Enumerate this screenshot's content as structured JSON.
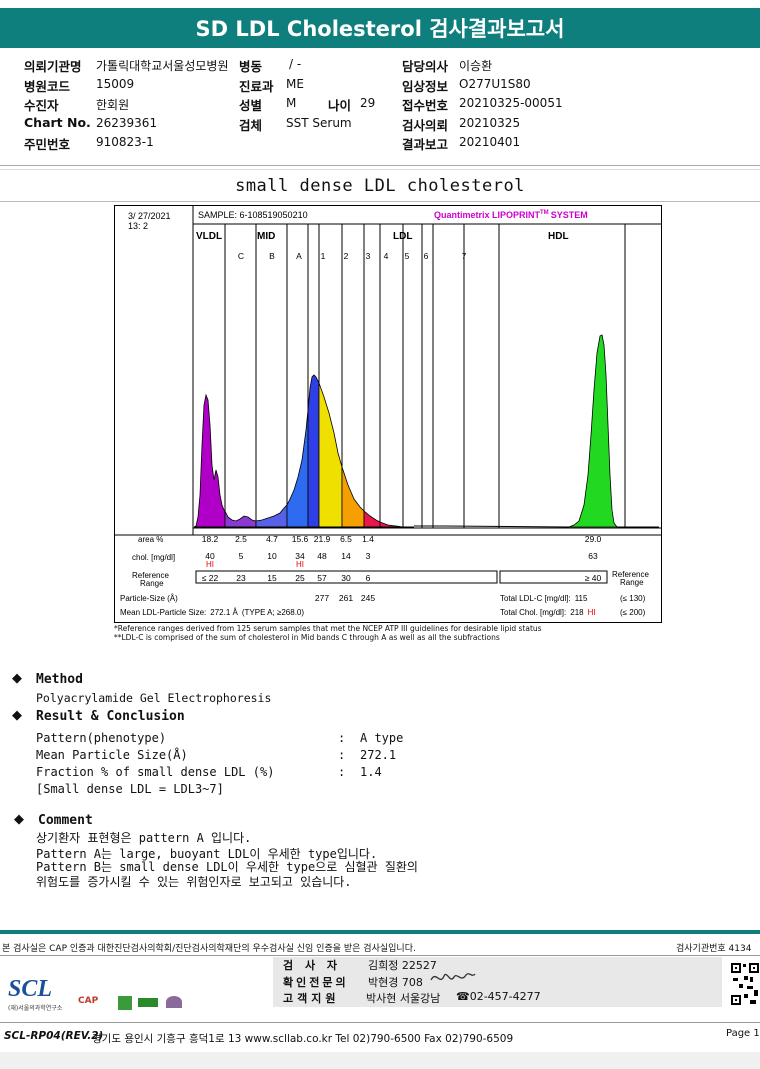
{
  "title": "SD LDL Cholesterol 검사결과보고서",
  "info": {
    "hospital_label": "의뢰기관명",
    "hospital": "가톨릭대학교서울성모병원",
    "ward_label": "병동",
    "ward": "/ -",
    "doctor_label": "담당의사",
    "doctor": "이승환",
    "code_label": "병원코드",
    "code": "15009",
    "dept_label": "진료과",
    "dept": "ME",
    "clinical_label": "임상정보",
    "clinical": "O277U1S80",
    "patient_label": "수진자",
    "patient": "한회원",
    "sex_label": "성별",
    "sex": "M",
    "age_label": "나이",
    "age": "29",
    "receipt_label": "접수번호",
    "receipt": "20210325-00051",
    "chart_label": "Chart No.",
    "chart": "26239361",
    "specimen_label": "검체",
    "specimen": "SST Serum",
    "request_label": "검사의뢰",
    "request": "20210325",
    "rrn_label": "주민번호",
    "rrn": "910823-1",
    "report_label": "결과보고",
    "report": "20210401"
  },
  "section_title": "small dense LDL cholesterol",
  "chart_data": {
    "type": "area",
    "date": "3/ 27/2021",
    "date2": "13: 2",
    "sample": "SAMPLE: 6-108519050210",
    "system": "Quantimetrix LIPOPRINT",
    "system_tm": "TM",
    "system_suffix": "SYSTEM",
    "groups": [
      "VLDL",
      "MID",
      "LDL",
      "HDL"
    ],
    "bands": [
      "C",
      "B",
      "A",
      "1",
      "2",
      "3",
      "4",
      "5",
      "6",
      "7"
    ],
    "band_colors": {
      "VLDL": "#b000c8",
      "C": "#8a3ad0",
      "B": "#5860e8",
      "A": "#2e6bf0",
      "1": "#2f3fe8",
      "2": "#f0e000",
      "3": "#f5a000",
      "4": "#e8184a",
      "5": "#e8184a",
      "HDL": "#22d820"
    },
    "area_label": "area %",
    "area": [
      "18.2",
      "2.5",
      "4.7",
      "15.6",
      "21.9",
      "6.5",
      "1.4",
      "29.0"
    ],
    "chol_label": "chol. [mg/dl]",
    "chol": [
      "40",
      "5",
      "10",
      "34",
      "48",
      "14",
      "3",
      "63"
    ],
    "hi": [
      "HI",
      "HI"
    ],
    "ref_label": "Reference",
    "ref_label2": "Range",
    "ref": [
      "≤ 22",
      "23",
      "15",
      "25",
      "57",
      "30",
      "6",
      "≥ 40"
    ],
    "psize_label": "Particle-Size (Å)",
    "psize": [
      "277",
      "261",
      "245"
    ],
    "mean_label": "Mean LDL-Particle Size:",
    "mean_value": "272.1 Å",
    "mean_type": "(TYPE A; ≥268.0)",
    "total_ldl_label": "Total LDL-C [mg/dl]:",
    "total_ldl": "115",
    "total_ldl_ref": "(≤ 130)",
    "total_chol_label": "Total Chol. [mg/dl]:",
    "total_chol": "218",
    "total_chol_flag": "HI",
    "total_chol_ref": "(≤ 200)",
    "footnote1": "*Reference ranges derived from 125 serum samples that met the NCEP ATP III guidelines for desirable lipid status",
    "footnote2": "**LDL-C is comprised of the sum of cholesterol in Mid bands C through A as well as all the subfractions"
  },
  "method": {
    "heading": "Method",
    "text": "Polyacrylamide Gel Electrophoresis"
  },
  "result": {
    "heading": "Result & Conclusion",
    "rows": [
      {
        "label": "Pattern(phenotype)",
        "sep": ":",
        "value": "A type"
      },
      {
        "label": "Mean Particle Size(Å)",
        "sep": ":",
        "value": "272.1"
      },
      {
        "label": "Fraction % of small dense LDL (%)",
        "sep": ":",
        "value": "1.4"
      }
    ],
    "note": "[Small dense LDL = LDL3~7]"
  },
  "comment": {
    "heading": "Comment",
    "lines": [
      "상기환자 표현형은 pattern A 입니다.",
      "Pattern A는 large, buoyant LDL이 우세한 type입니다.",
      "Pattern B는 small dense LDL이 우세한 type으로 심혈관 질환의",
      "위험도를 증가시킬 수 있는 위험인자로 보고되고 있습니다."
    ]
  },
  "footer": {
    "cert": "본 검사실은 CAP 인증과 대한진단검사의학회/진단검사의학재단의 우수검사실 신임 인증을 받은 검사실입니다.",
    "lab_no": "검사기관번호 4134",
    "tester_label": "검 사 자",
    "tester": "김희정 22527",
    "specialist_label": "확인전문의",
    "specialist": "박현경 708",
    "support_label": "고객지원",
    "support": "박사현 서울강남",
    "phone": "☎02-457-4277",
    "logo": "SCL",
    "logo_sub": "(재)서울의과학연구소",
    "badge1": "CAP",
    "doc_code": "SCL-RP04(REV.2)",
    "address": "경기도 용인시 기흥구 흥덕1로 13  www.scllab.co.kr  Tel 02)790-6500  Fax 02)790-6509",
    "page": "Page 1"
  }
}
